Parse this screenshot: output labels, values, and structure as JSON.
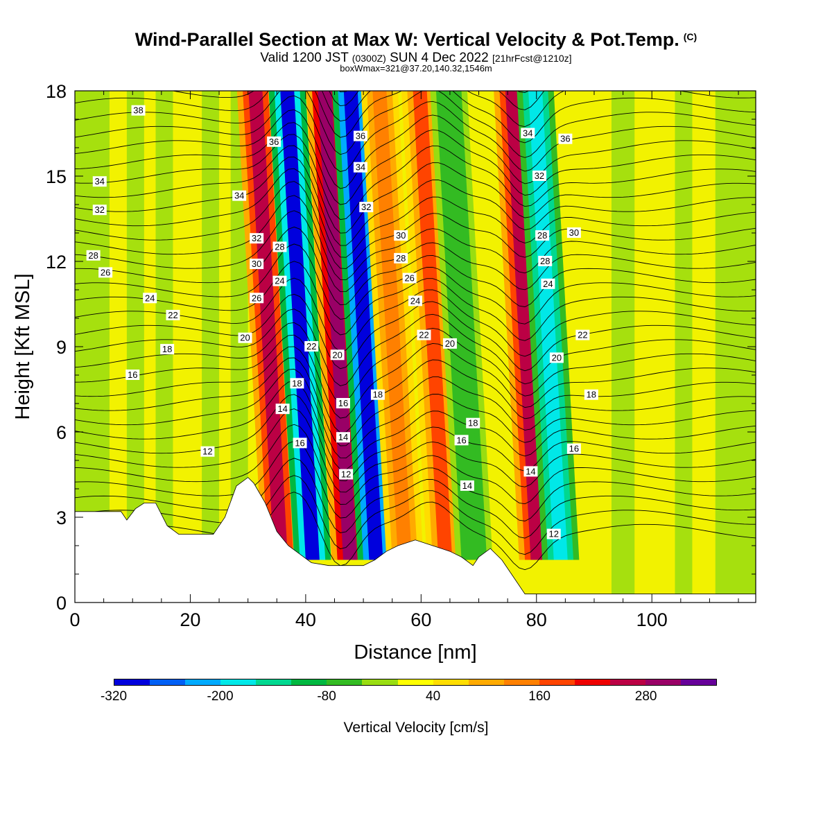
{
  "header": {
    "title": "Wind-Parallel Section at Max W: Vertical Velocity & Pot.Temp.",
    "copyright": "(C)",
    "valid_prefix": "Valid 1200 JST",
    "valid_utc": "(0300Z)",
    "valid_date": "SUN 4 Dec 2022",
    "forecast": "[21hrFcst@1210z]",
    "box_info": "boxWmax=321@37.20,140.32,1546m"
  },
  "chart_data": {
    "type": "heatmap",
    "xlabel": "Distance [nm]",
    "ylabel": "Height [Kft MSL]",
    "xlim": [
      0,
      118
    ],
    "ylim": [
      0,
      18
    ],
    "xticks": [
      0,
      20,
      40,
      60,
      80,
      100
    ],
    "yticks": [
      0,
      3,
      6,
      9,
      12,
      15,
      18
    ],
    "colorbar": {
      "title": "Vertical Velocity [cm/s]",
      "labels": [
        -320,
        -200,
        -80,
        40,
        160,
        280
      ],
      "colors": [
        "#0000dd",
        "#005ff5",
        "#00aaff",
        "#00e8e8",
        "#00d890",
        "#00b840",
        "#33bb22",
        "#99dd11",
        "#ffff00",
        "#ffdd00",
        "#ffaa00",
        "#ff8000",
        "#ff4400",
        "#ee0000",
        "#bb0044",
        "#990066",
        "#660099"
      ]
    },
    "shaded_bands": [
      {
        "x_center": 33.5,
        "vertical_velocity": 240,
        "sign": "updraft"
      },
      {
        "x_center": 39,
        "vertical_velocity": -300,
        "sign": "downdraft"
      },
      {
        "x_center": 45.5,
        "vertical_velocity": 300,
        "sign": "updraft"
      },
      {
        "x_center": 50,
        "vertical_velocity": -320,
        "sign": "downdraft"
      },
      {
        "x_center": 55,
        "vertical_velocity": 120,
        "sign": "updraft"
      },
      {
        "x_center": 62,
        "vertical_velocity": 160,
        "sign": "updraft"
      },
      {
        "x_center": 67,
        "vertical_velocity": -80,
        "sign": "downdraft"
      },
      {
        "x_center": 78,
        "vertical_velocity": 240,
        "sign": "updraft"
      },
      {
        "x_center": 82,
        "vertical_velocity": -200,
        "sign": "downdraft"
      }
    ],
    "terrain_kft": [
      {
        "x": 0,
        "z": 3.2
      },
      {
        "x": 8,
        "z": 3.2
      },
      {
        "x": 9,
        "z": 2.9
      },
      {
        "x": 10.5,
        "z": 3.3
      },
      {
        "x": 12,
        "z": 3.5
      },
      {
        "x": 14,
        "z": 3.5
      },
      {
        "x": 16,
        "z": 2.7
      },
      {
        "x": 18,
        "z": 2.4
      },
      {
        "x": 24,
        "z": 2.4
      },
      {
        "x": 26,
        "z": 3.0
      },
      {
        "x": 28,
        "z": 4.1
      },
      {
        "x": 30,
        "z": 4.4
      },
      {
        "x": 31,
        "z": 4.2
      },
      {
        "x": 33,
        "z": 3.5
      },
      {
        "x": 35,
        "z": 2.5
      },
      {
        "x": 37,
        "z": 2.0
      },
      {
        "x": 39,
        "z": 1.7
      },
      {
        "x": 41,
        "z": 1.4
      },
      {
        "x": 44,
        "z": 1.3
      },
      {
        "x": 50,
        "z": 1.3
      },
      {
        "x": 52,
        "z": 1.5
      },
      {
        "x": 54,
        "z": 1.8
      },
      {
        "x": 56,
        "z": 2.0
      },
      {
        "x": 59,
        "z": 2.2
      },
      {
        "x": 62,
        "z": 2.0
      },
      {
        "x": 65,
        "z": 1.8
      },
      {
        "x": 67,
        "z": 1.6
      },
      {
        "x": 69,
        "z": 1.3
      },
      {
        "x": 70,
        "z": 1.6
      },
      {
        "x": 72,
        "z": 1.9
      },
      {
        "x": 74,
        "z": 1.5
      },
      {
        "x": 76,
        "z": 0.9
      },
      {
        "x": 78,
        "z": 0.3
      },
      {
        "x": 80,
        "z": 0.3
      },
      {
        "x": 118,
        "z": 0.3
      }
    ],
    "theta_contour_labels": [
      {
        "text": "38",
        "x": 11,
        "y": 17.3
      },
      {
        "text": "34",
        "x": 4.3,
        "y": 14.8
      },
      {
        "text": "32",
        "x": 4.3,
        "y": 13.8
      },
      {
        "text": "28",
        "x": 3.2,
        "y": 12.2
      },
      {
        "text": "26",
        "x": 5.3,
        "y": 11.6
      },
      {
        "text": "24",
        "x": 13,
        "y": 10.7
      },
      {
        "text": "22",
        "x": 17,
        "y": 10.1
      },
      {
        "text": "18",
        "x": 16,
        "y": 8.9
      },
      {
        "text": "16",
        "x": 10,
        "y": 8.0
      },
      {
        "text": "12",
        "x": 23,
        "y": 5.3
      },
      {
        "text": "36",
        "x": 34.5,
        "y": 16.2
      },
      {
        "text": "34",
        "x": 28.5,
        "y": 14.3
      },
      {
        "text": "32",
        "x": 31.5,
        "y": 12.8
      },
      {
        "text": "30",
        "x": 31.5,
        "y": 11.9
      },
      {
        "text": "26",
        "x": 31.5,
        "y": 10.7
      },
      {
        "text": "20",
        "x": 29.5,
        "y": 9.3
      },
      {
        "text": "28",
        "x": 35.5,
        "y": 12.5
      },
      {
        "text": "24",
        "x": 35.5,
        "y": 11.3
      },
      {
        "text": "22",
        "x": 41,
        "y": 9.0
      },
      {
        "text": "18",
        "x": 38.5,
        "y": 7.7
      },
      {
        "text": "14",
        "x": 36,
        "y": 6.8
      },
      {
        "text": "16",
        "x": 39,
        "y": 5.6
      },
      {
        "text": "20",
        "x": 45.5,
        "y": 8.7
      },
      {
        "text": "16",
        "x": 46.5,
        "y": 7.0
      },
      {
        "text": "14",
        "x": 46.5,
        "y": 5.8
      },
      {
        "text": "12",
        "x": 47,
        "y": 4.5
      },
      {
        "text": "36",
        "x": 49.5,
        "y": 16.4
      },
      {
        "text": "34",
        "x": 49.5,
        "y": 15.3
      },
      {
        "text": "32",
        "x": 50.5,
        "y": 13.9
      },
      {
        "text": "18",
        "x": 52.5,
        "y": 7.3
      },
      {
        "text": "30",
        "x": 56.5,
        "y": 12.9
      },
      {
        "text": "28",
        "x": 56.5,
        "y": 12.1
      },
      {
        "text": "26",
        "x": 58,
        "y": 11.4
      },
      {
        "text": "24",
        "x": 59,
        "y": 10.6
      },
      {
        "text": "22",
        "x": 60.5,
        "y": 9.4
      },
      {
        "text": "20",
        "x": 65,
        "y": 9.1
      },
      {
        "text": "18",
        "x": 69,
        "y": 6.3
      },
      {
        "text": "16",
        "x": 67,
        "y": 5.7
      },
      {
        "text": "14",
        "x": 68,
        "y": 4.1
      },
      {
        "text": "34",
        "x": 78.5,
        "y": 16.5
      },
      {
        "text": "36",
        "x": 85,
        "y": 16.3
      },
      {
        "text": "32",
        "x": 80.5,
        "y": 15.0
      },
      {
        "text": "28",
        "x": 81,
        "y": 12.9
      },
      {
        "text": "30",
        "x": 86.5,
        "y": 13.0
      },
      {
        "text": "28",
        "x": 81.5,
        "y": 12.0
      },
      {
        "text": "24",
        "x": 82,
        "y": 11.2
      },
      {
        "text": "22",
        "x": 88,
        "y": 9.4
      },
      {
        "text": "20",
        "x": 83.5,
        "y": 8.6
      },
      {
        "text": "18",
        "x": 89.5,
        "y": 7.3
      },
      {
        "text": "16",
        "x": 86.5,
        "y": 5.4
      },
      {
        "text": "14",
        "x": 79,
        "y": 4.6
      },
      {
        "text": "12",
        "x": 83,
        "y": 2.4
      }
    ]
  }
}
